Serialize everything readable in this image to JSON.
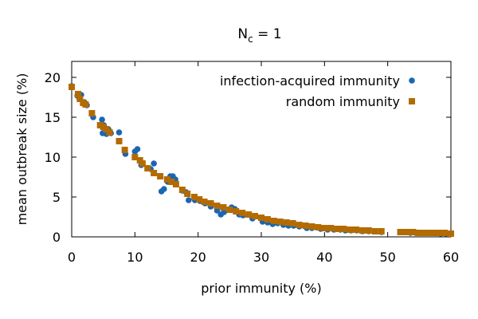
{
  "chart_data": {
    "type": "scatter",
    "title": {
      "main": "N",
      "subscript": "c",
      "rest": " = 1"
    },
    "xlabel": "prior immunity (%)",
    "ylabel": "mean outbreak size (%)",
    "xlim": [
      0,
      60
    ],
    "ylim": [
      0,
      22
    ],
    "xticks": [
      0,
      10,
      20,
      30,
      40,
      50,
      60
    ],
    "yticks": [
      0,
      5,
      10,
      15,
      20
    ],
    "legend_position": "top-right",
    "series": [
      {
        "name": "infection-acquired immunity",
        "marker": "circle",
        "color": "#1a66b3",
        "x": [
          0,
          0.9,
          1.2,
          1.5,
          2.0,
          2.4,
          3.4,
          4.8,
          4.9,
          5.1,
          5.5,
          5.8,
          6.2,
          7.5,
          8.5,
          10.0,
          10.4,
          11.0,
          12.5,
          13.0,
          14.2,
          14.6,
          15.2,
          15.6,
          16.0,
          16.4,
          17.5,
          18.1,
          18.5,
          19.5,
          20.3,
          21.1,
          22.0,
          23.0,
          23.6,
          24.1,
          25.3,
          25.8,
          26.5,
          27.1,
          28.0,
          28.6,
          30.2,
          31.0,
          31.8,
          32.6,
          33.5,
          34.3,
          35.1,
          36.0,
          37.2,
          38.0,
          39.4,
          40.5,
          41.5,
          42.5,
          43.3,
          44.2,
          45.1,
          46.0,
          47.0,
          48.0,
          49.0,
          52.0,
          52.8,
          53.6,
          54.4,
          55.2,
          56.0,
          56.8,
          57.6,
          58.4,
          59.2,
          59.8
        ],
        "y": [
          18.9,
          17.7,
          17.4,
          17.8,
          16.9,
          16.5,
          15.0,
          14.7,
          13.0,
          14.0,
          12.9,
          13.5,
          13.0,
          13.1,
          10.4,
          10.7,
          11.0,
          9.0,
          8.5,
          9.2,
          5.7,
          6.0,
          6.9,
          7.6,
          7.6,
          7.2,
          5.8,
          5.6,
          4.6,
          4.6,
          4.5,
          4.2,
          3.8,
          3.3,
          2.8,
          3.1,
          3.7,
          3.5,
          2.8,
          2.7,
          2.8,
          2.3,
          1.9,
          1.8,
          1.6,
          1.7,
          1.5,
          1.4,
          1.4,
          1.3,
          1.1,
          1.1,
          1.0,
          0.9,
          0.9,
          0.9,
          0.8,
          0.8,
          0.8,
          0.7,
          0.7,
          0.7,
          0.6,
          0.6,
          0.6,
          0.5,
          0.5,
          0.5,
          0.5,
          0.5,
          0.5,
          0.4,
          0.4,
          0.4
        ]
      },
      {
        "name": "random immunity",
        "marker": "square",
        "color": "#b36b00",
        "x": [
          0,
          1.0,
          1.3,
          1.8,
          2.2,
          3.2,
          4.5,
          5.0,
          5.5,
          6.0,
          7.5,
          8.4,
          10.0,
          10.8,
          11.2,
          12.0,
          13.0,
          14.0,
          15.1,
          15.8,
          16.5,
          17.5,
          18.3,
          19.4,
          20.2,
          21.0,
          22.0,
          23.0,
          24.0,
          25.0,
          26.0,
          27.0,
          28.0,
          29.0,
          30.0,
          31.0,
          32.0,
          33.0,
          34.0,
          35.0,
          36.0,
          37.0,
          38.0,
          39.0,
          40.0,
          41.0,
          42.0,
          43.0,
          44.0,
          45.0,
          46.0,
          47.0,
          48.0,
          49.0,
          52.0,
          53.0,
          54.0,
          55.0,
          56.0,
          57.0,
          58.0,
          59.0,
          60.0
        ],
        "y": [
          18.8,
          17.9,
          17.3,
          16.8,
          16.6,
          15.5,
          14.0,
          13.8,
          13.5,
          13.1,
          12.0,
          10.9,
          10.0,
          9.6,
          9.2,
          8.6,
          8.0,
          7.6,
          7.2,
          6.9,
          6.6,
          5.9,
          5.4,
          5.0,
          4.7,
          4.4,
          4.2,
          3.9,
          3.7,
          3.4,
          3.2,
          3.0,
          2.8,
          2.6,
          2.4,
          2.2,
          2.0,
          1.9,
          1.8,
          1.7,
          1.5,
          1.4,
          1.3,
          1.2,
          1.1,
          1.1,
          1.0,
          1.0,
          0.9,
          0.9,
          0.8,
          0.8,
          0.7,
          0.7,
          0.6,
          0.6,
          0.6,
          0.5,
          0.5,
          0.5,
          0.5,
          0.5,
          0.4
        ]
      }
    ]
  }
}
